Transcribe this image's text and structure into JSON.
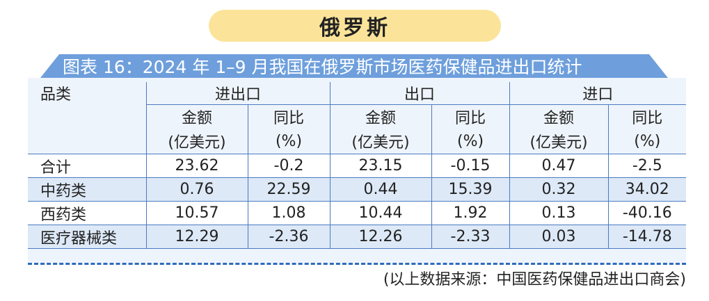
{
  "country": "俄罗斯",
  "figure_title": "图表 16：2024 年 1–9 月我国在俄罗斯市场医药保健品进出口统计",
  "table": {
    "category_header": "品类",
    "groups": [
      "进出口",
      "出口",
      "进口"
    ],
    "amount_label": "金额",
    "amount_unit": "(亿美元)",
    "yoy_label": "同比",
    "yoy_unit": "(%)",
    "rows": [
      {
        "category": "合计",
        "values": [
          "23.62",
          "-0.2",
          "23.15",
          "-0.15",
          "0.47",
          "-2.5"
        ]
      },
      {
        "category": "中药类",
        "values": [
          "0.76",
          "22.59",
          "0.44",
          "15.39",
          "0.32",
          "34.02"
        ]
      },
      {
        "category": "西药类",
        "values": [
          "10.57",
          "1.08",
          "10.44",
          "1.92",
          "0.13",
          "-40.16"
        ]
      },
      {
        "category": "医疗器械类",
        "values": [
          "12.29",
          "-2.36",
          "12.26",
          "-2.33",
          "0.03",
          "-14.78"
        ]
      }
    ]
  },
  "source_note": "(以上数据来源：中国医药保健品进出口商会)",
  "colors": {
    "pill": "#fbe49a",
    "title_band": "#6e9fdc",
    "rule": "#4a79c2",
    "row_band": "#dde9f7"
  }
}
